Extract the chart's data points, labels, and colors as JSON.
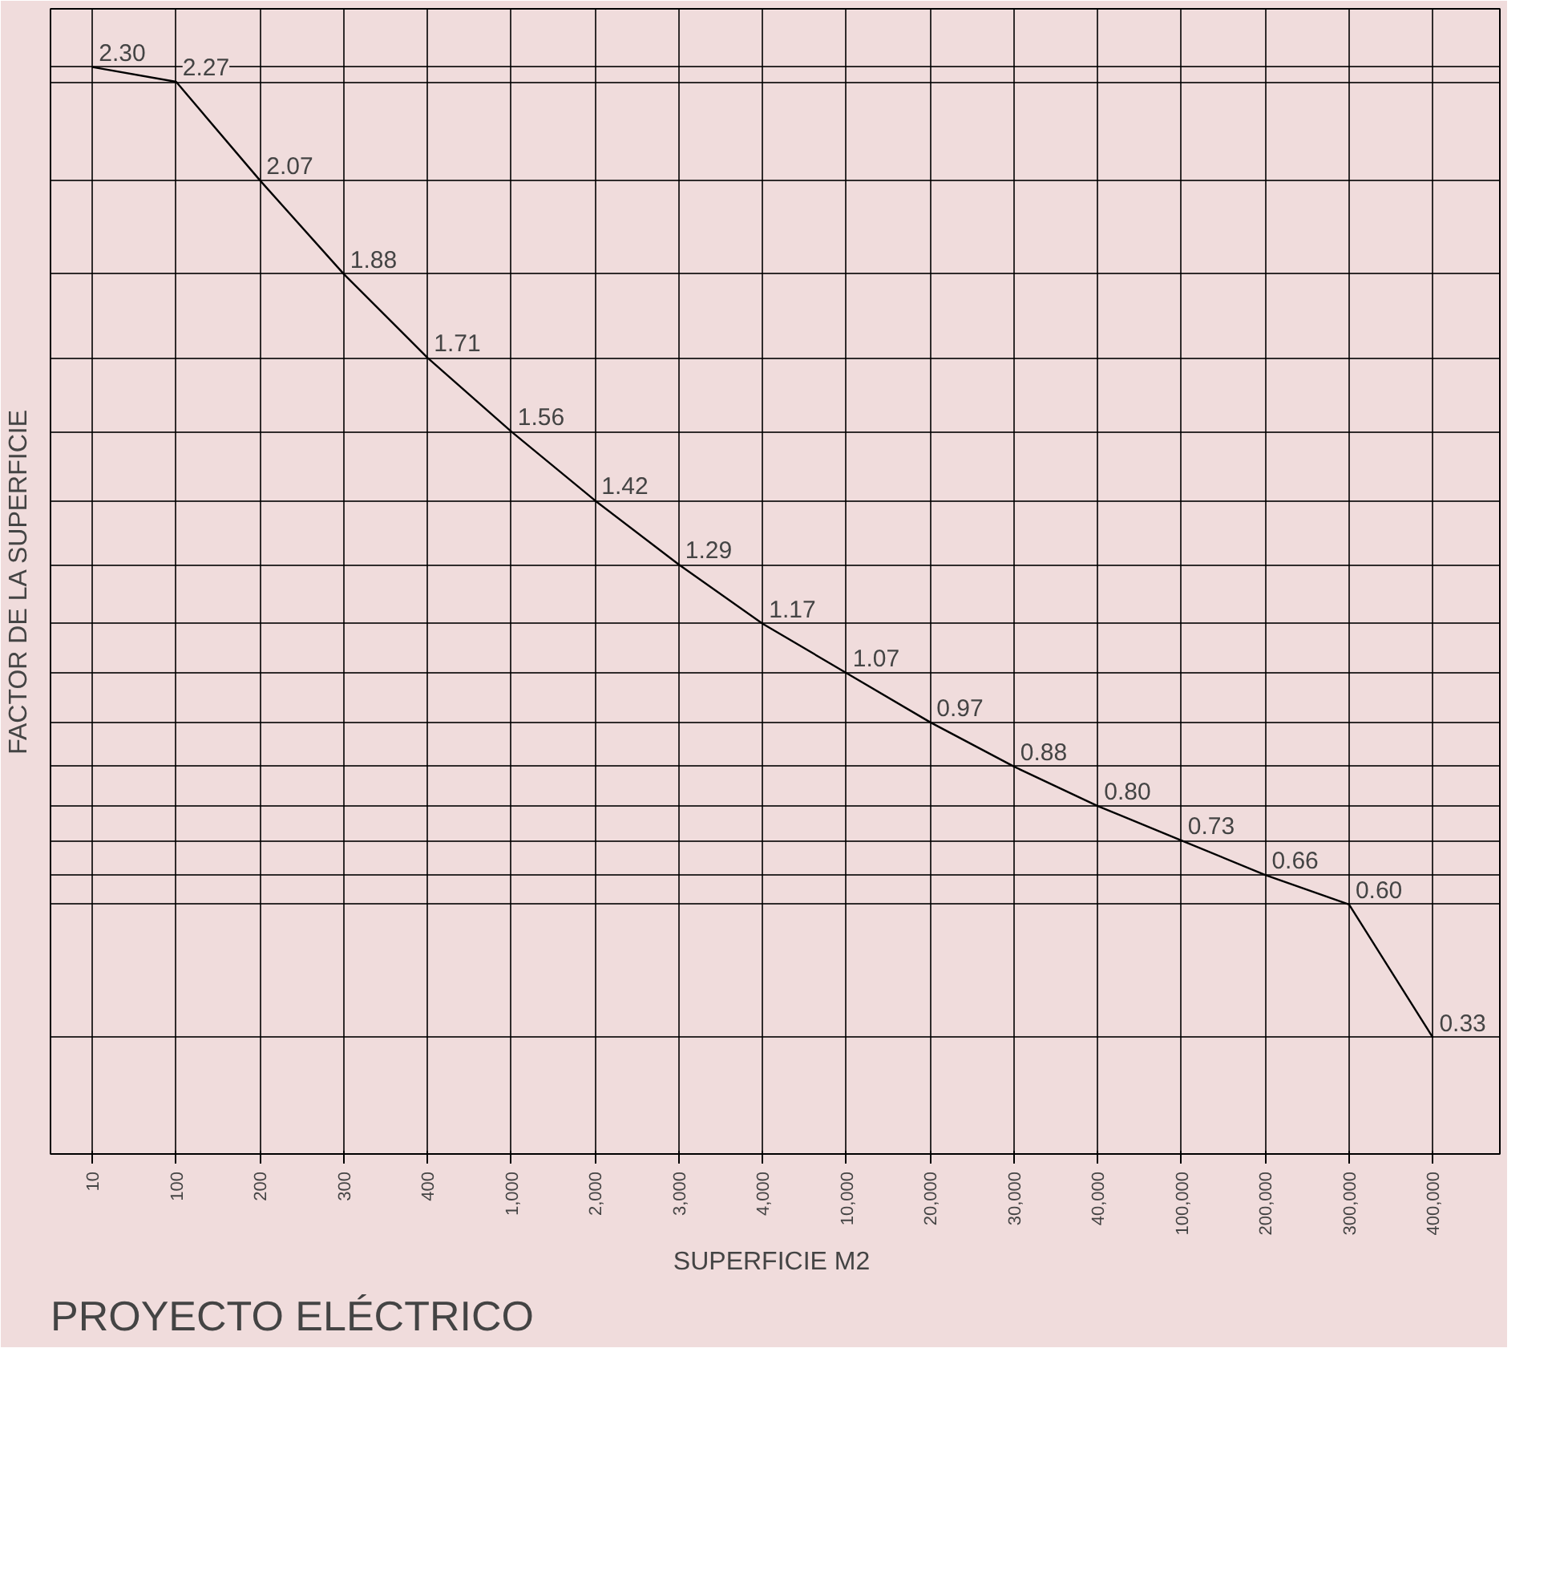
{
  "chart_data": {
    "type": "line",
    "xlabel": "SUPERFICIE  M2",
    "ylabel": "FACTOR DE LA SUPERFICIE",
    "categories": [
      "10",
      "100",
      "200",
      "300",
      "400",
      "1,000",
      "2,000",
      "3,000",
      "4,000",
      "10,000",
      "20,000",
      "30,000",
      "40,000",
      "100,000",
      "200,000",
      "300,000",
      "400,000"
    ],
    "series": [
      {
        "color": "#000000",
        "values": [
          2.3,
          2.27,
          2.07,
          1.88,
          1.71,
          1.56,
          1.42,
          1.29,
          1.17,
          1.07,
          0.97,
          0.88,
          0.8,
          0.73,
          0.66,
          0.6,
          0.33
        ],
        "value_labels": [
          "2.30",
          "2.27",
          "2.07",
          "1.88",
          "1.71",
          "1.56",
          "1.42",
          "1.29",
          "1.17",
          "1.07",
          "0.97",
          "0.88",
          "0.80",
          "0.73",
          "0.66",
          "0.60",
          "0.33"
        ]
      }
    ],
    "grid": true,
    "marker": "none",
    "line_style": "solid",
    "annotations": [
      "PROYECTO ELÉCTRICO"
    ]
  }
}
